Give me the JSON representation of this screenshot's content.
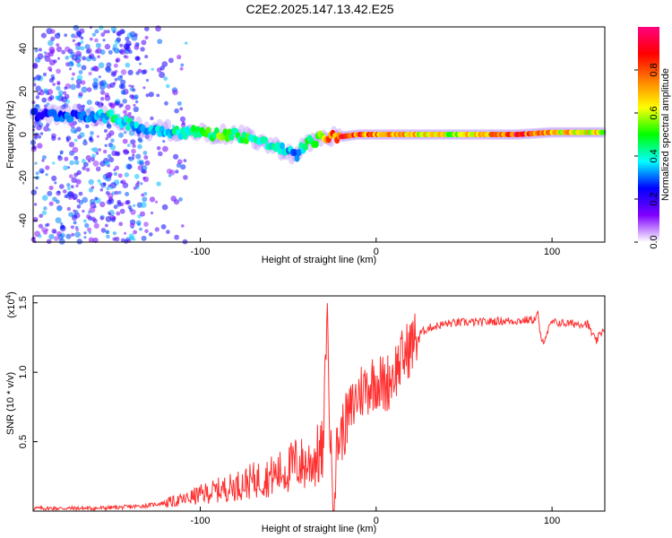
{
  "chart_data": [
    {
      "type": "heatmap",
      "title": "C2E2.2025.147.13.42.E25",
      "xlabel": "Height of straight line (km)",
      "ylabel": "Frequency (Hz)",
      "xlim": [
        -195,
        130
      ],
      "ylim": [
        -50,
        50
      ],
      "x_ticks": [
        -100,
        0,
        100
      ],
      "y_ticks": [
        -40,
        -20,
        0,
        20,
        40
      ],
      "colorbar": {
        "label": "Normalized spectral amplitude",
        "range": [
          0,
          1
        ],
        "ticks": [
          "0.0",
          "0.2",
          "0.4",
          "0.6",
          "0.8"
        ],
        "tick_values": [
          0.0,
          0.2,
          0.4,
          0.6,
          0.8
        ],
        "colors": [
          "#ffffff",
          "#8000ff",
          "#0000ff",
          "#00ffff",
          "#00ff00",
          "#ffff00",
          "#ff8000",
          "#ff0000",
          "#ff0080"
        ]
      },
      "ridge": {
        "x": [
          -195,
          -180,
          -165,
          -150,
          -140,
          -130,
          -120,
          -110,
          -100,
          -90,
          -80,
          -70,
          -60,
          -50,
          -45,
          -40,
          -35,
          -30,
          -20,
          -10,
          0,
          10,
          20,
          40,
          60,
          80,
          100,
          120,
          130
        ],
        "y": [
          9,
          9,
          9,
          8,
          5,
          2,
          2,
          1,
          1,
          0,
          0,
          -2,
          -5,
          -8,
          -10,
          -4,
          -3,
          -1,
          -1,
          0,
          0,
          0,
          0,
          0,
          0,
          0,
          1,
          1,
          1
        ],
        "amplitude": [
          0.25,
          0.3,
          0.3,
          0.45,
          0.4,
          0.35,
          0.4,
          0.45,
          0.5,
          0.55,
          0.5,
          0.5,
          0.45,
          0.4,
          0.35,
          0.45,
          0.55,
          0.7,
          0.95,
          0.85,
          0.8,
          0.75,
          0.7,
          0.65,
          0.7,
          0.95,
          0.7,
          0.7,
          0.65
        ]
      }
    },
    {
      "type": "line",
      "xlabel": "Height of straight line (km)",
      "ylabel": "SNR (10 * v/v)",
      "y_multiplier_label": "(x10",
      "y_multiplier_exp": "4",
      "y_multiplier_close": ")",
      "xlim": [
        -195,
        130
      ],
      "ylim": [
        0,
        1.55
      ],
      "x_ticks": [
        -100,
        0,
        100
      ],
      "y_ticks": [
        0.5,
        1.0,
        1.5
      ],
      "y_tick_labels": [
        "0.5",
        "1.0",
        "1.5"
      ],
      "line_color": "#ff3030",
      "series": [
        {
          "x": [
            -195,
            -180,
            -160,
            -140,
            -130,
            -120,
            -110,
            -100,
            -90,
            -80,
            -70,
            -60,
            -50,
            -45,
            -40,
            -35,
            -30,
            -28,
            -26,
            -24,
            -22,
            -20,
            -15,
            -10,
            -5,
            0,
            5,
            10,
            15,
            20,
            25,
            30,
            40,
            50,
            60,
            70,
            80,
            90,
            92,
            94,
            100,
            110,
            120,
            125,
            130
          ],
          "y": [
            0.02,
            0.02,
            0.02,
            0.03,
            0.04,
            0.06,
            0.08,
            0.12,
            0.15,
            0.18,
            0.22,
            0.25,
            0.3,
            0.35,
            0.33,
            0.38,
            0.42,
            1.5,
            0.45,
            0.1,
            0.5,
            0.55,
            0.7,
            0.85,
            0.9,
            0.95,
            0.9,
            1.0,
            1.1,
            1.2,
            1.28,
            1.32,
            1.35,
            1.36,
            1.36,
            1.37,
            1.37,
            1.38,
            1.42,
            1.2,
            1.36,
            1.35,
            1.35,
            1.22,
            1.33
          ]
        }
      ]
    }
  ]
}
